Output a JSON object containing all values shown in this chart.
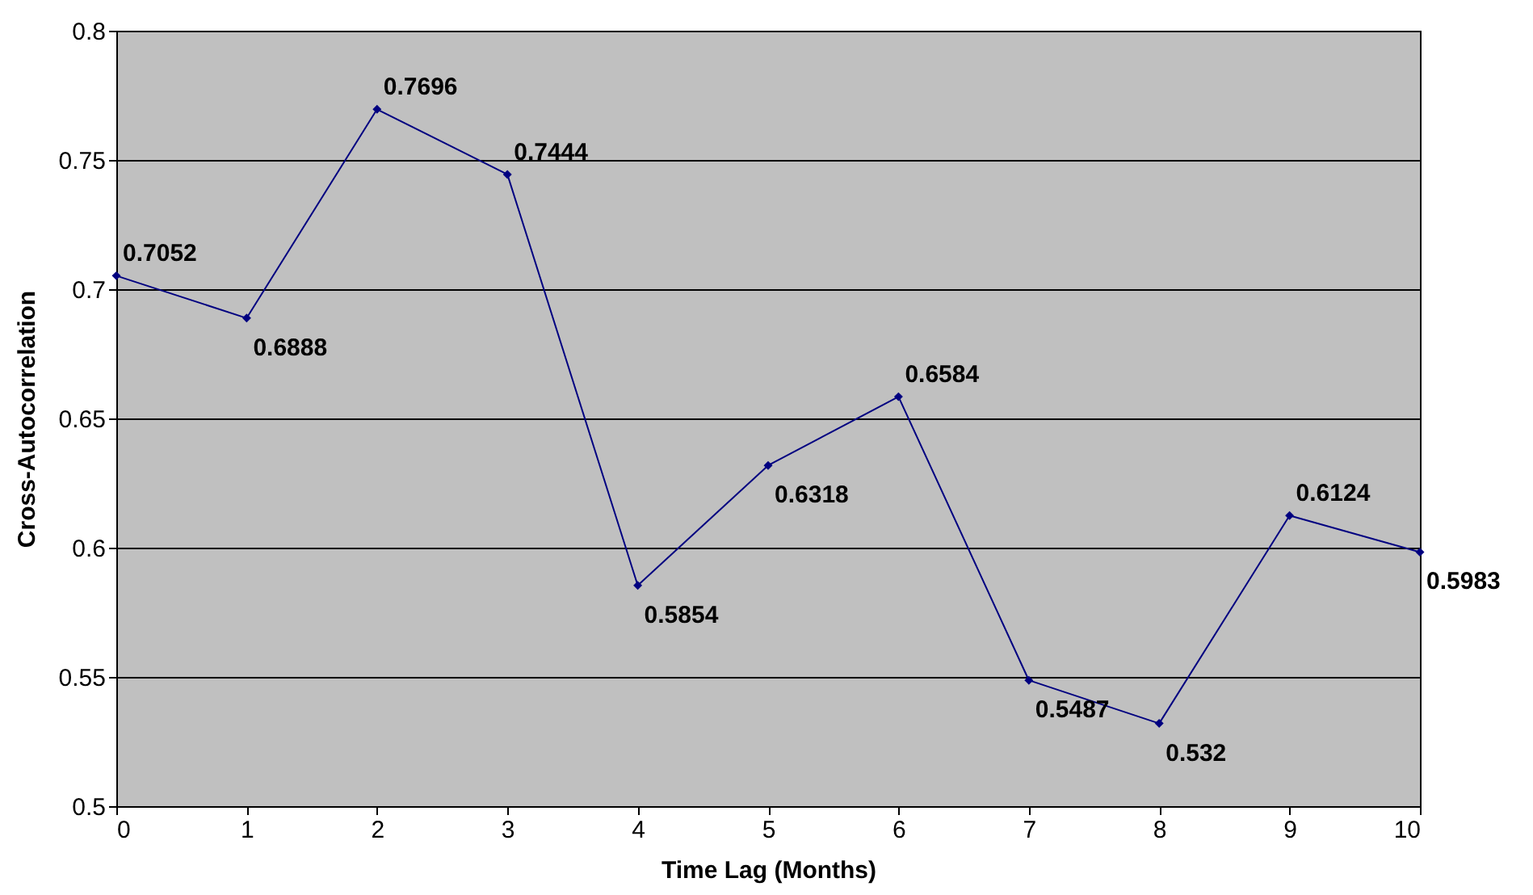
{
  "chart_data": {
    "type": "line",
    "xlabel": "Time Lag (Months)",
    "ylabel": "Cross-Autocorrelation",
    "x": [
      0,
      1,
      2,
      3,
      4,
      5,
      6,
      7,
      8,
      9,
      10
    ],
    "series": [
      {
        "color": "#000080",
        "values": [
          0.7052,
          0.6888,
          0.7696,
          0.7444,
          0.5854,
          0.6318,
          0.6584,
          0.5487,
          0.532,
          0.6124,
          0.5983
        ]
      }
    ],
    "xlim": [
      0,
      10
    ],
    "xticks": [
      0,
      1,
      2,
      3,
      4,
      5,
      6,
      7,
      8,
      9,
      10
    ],
    "ylim": [
      0.5,
      0.8
    ],
    "yticks": [
      0.5,
      0.55,
      0.6,
      0.65,
      0.7,
      0.75,
      0.8
    ],
    "grid": "y",
    "marker": "diamond",
    "line_style": "solid",
    "data_labels": true
  }
}
